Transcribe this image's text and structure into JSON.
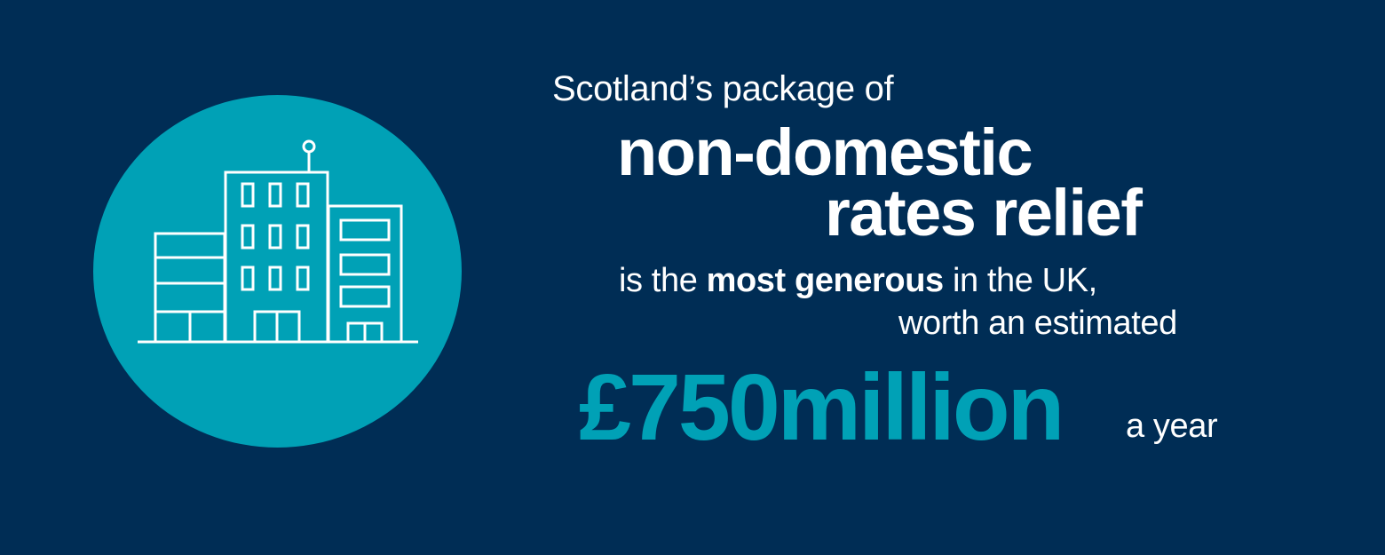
{
  "colors": {
    "background": "#002d55",
    "accent": "#00a1b6",
    "text": "#ffffff"
  },
  "icon": "office-building-icon",
  "text": {
    "intro": "Scotland’s package of",
    "headline_line1": "non-domestic",
    "headline_line2": "rates relief",
    "claim_prefix": "is the ",
    "claim_bold": "most generous",
    "claim_suffix": " in the UK,",
    "worth": "worth an estimated",
    "amount": "£750million",
    "per_year": "a year"
  }
}
